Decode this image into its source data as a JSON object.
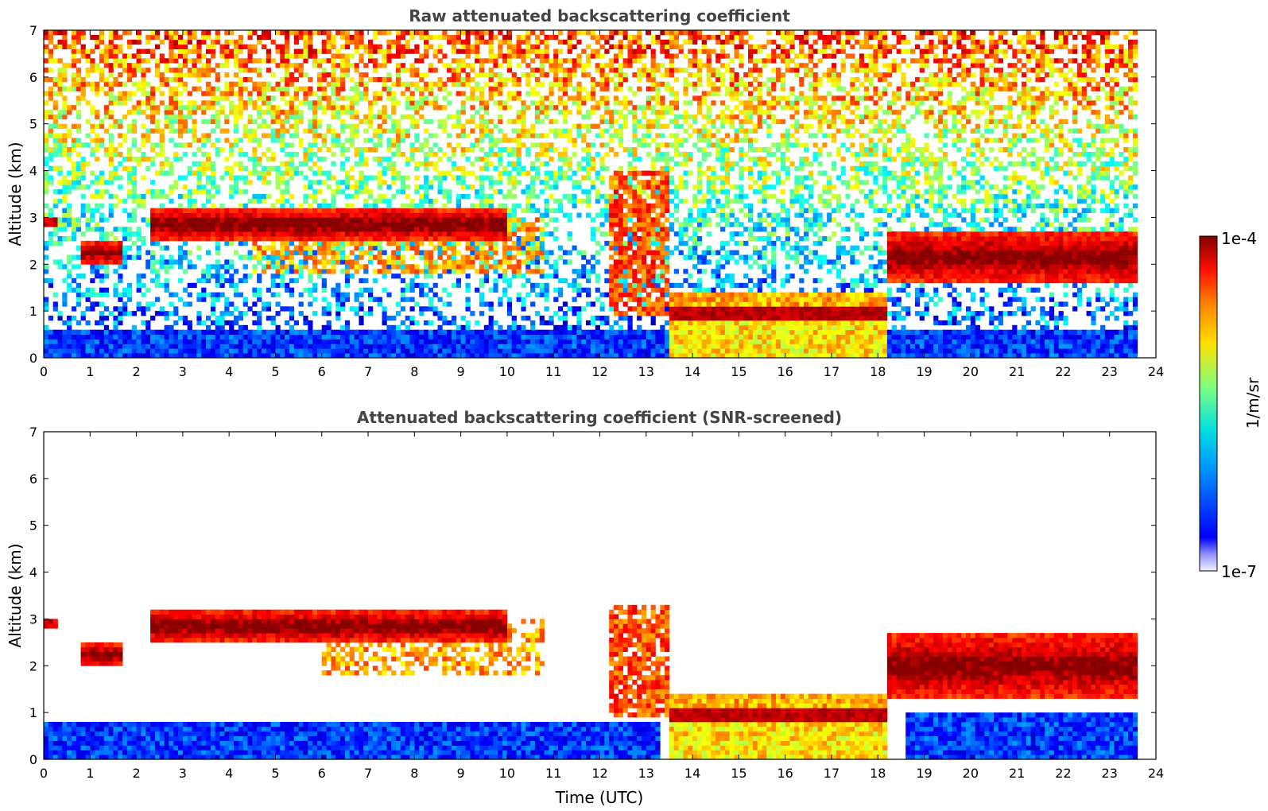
{
  "chart_data": [
    {
      "type": "heatmap",
      "title": "Raw attenuated backscattering coefficient",
      "xlabel": "",
      "ylabel": "Altitude (km)",
      "xlim": [
        0,
        24
      ],
      "ylim": [
        0,
        7
      ],
      "x_ticks": [
        "0",
        "1",
        "2",
        "3",
        "4",
        "5",
        "6",
        "7",
        "8",
        "9",
        "10",
        "11",
        "12",
        "13",
        "14",
        "15",
        "16",
        "17",
        "18",
        "19",
        "20",
        "21",
        "22",
        "23",
        "24"
      ],
      "y_ticks": [
        "0",
        "1",
        "2",
        "3",
        "4",
        "5",
        "6",
        "7"
      ],
      "data_end_hour": 23.6,
      "screened": false,
      "features": [
        {
          "kind": "cloud_layer",
          "x": [
            0.0,
            0.3
          ],
          "y": [
            2.8,
            3.0
          ]
        },
        {
          "kind": "cloud_layer",
          "x": [
            0.8,
            1.7
          ],
          "y": [
            2.0,
            2.5
          ]
        },
        {
          "kind": "cloud_layer",
          "x": [
            2.3,
            10.0
          ],
          "y": [
            2.5,
            3.2
          ]
        },
        {
          "kind": "virga",
          "x": [
            4.5,
            10.8
          ],
          "y": [
            1.8,
            3.0
          ]
        },
        {
          "kind": "falling_precipitation",
          "x": [
            12.2,
            13.5
          ],
          "y": [
            0.9,
            4.0
          ]
        },
        {
          "kind": "boundary_layer_cloud",
          "x": [
            13.5,
            18.2
          ],
          "y": [
            0.0,
            1.4
          ]
        },
        {
          "kind": "cloud_layer",
          "x": [
            18.2,
            23.6
          ],
          "y": [
            1.6,
            2.7
          ]
        },
        {
          "kind": "aerosol_layer",
          "x": [
            0.0,
            23.6
          ],
          "y": [
            0.0,
            0.6
          ]
        }
      ]
    },
    {
      "type": "heatmap",
      "title": "Attenuated backscattering coefficient (SNR-screened)",
      "xlabel": "Time (UTC)",
      "ylabel": "Altitude (km)",
      "xlim": [
        0,
        24
      ],
      "ylim": [
        0,
        7
      ],
      "x_ticks": [
        "0",
        "1",
        "2",
        "3",
        "4",
        "5",
        "6",
        "7",
        "8",
        "9",
        "10",
        "11",
        "12",
        "13",
        "14",
        "15",
        "16",
        "17",
        "18",
        "19",
        "20",
        "21",
        "22",
        "23",
        "24"
      ],
      "y_ticks": [
        "0",
        "1",
        "2",
        "3",
        "4",
        "5",
        "6",
        "7"
      ],
      "data_end_hour": 23.6,
      "screened": true,
      "features": [
        {
          "kind": "cloud_layer",
          "x": [
            0.0,
            0.3
          ],
          "y": [
            2.8,
            3.0
          ]
        },
        {
          "kind": "cloud_layer",
          "x": [
            0.8,
            1.7
          ],
          "y": [
            2.0,
            2.5
          ]
        },
        {
          "kind": "cloud_layer",
          "x": [
            2.3,
            10.0
          ],
          "y": [
            2.5,
            3.2
          ]
        },
        {
          "kind": "virga",
          "x": [
            6.0,
            10.8
          ],
          "y": [
            1.8,
            3.0
          ]
        },
        {
          "kind": "falling_precipitation",
          "x": [
            12.2,
            13.5
          ],
          "y": [
            0.9,
            3.3
          ]
        },
        {
          "kind": "boundary_layer_cloud",
          "x": [
            13.5,
            18.2
          ],
          "y": [
            0.0,
            1.4
          ]
        },
        {
          "kind": "cloud_layer",
          "x": [
            18.2,
            23.6
          ],
          "y": [
            1.3,
            2.7
          ]
        },
        {
          "kind": "aerosol_layer",
          "x": [
            0.0,
            13.3
          ],
          "y": [
            0.0,
            0.8
          ]
        },
        {
          "kind": "aerosol_layer",
          "x": [
            18.6,
            23.6
          ],
          "y": [
            0.0,
            1.0
          ]
        }
      ]
    }
  ],
  "colorbar": {
    "max_label": "1e-4",
    "min_label": "1e-7",
    "unit_label": "1/m/sr",
    "colormap": "jet",
    "range": [
      1e-07,
      0.0001
    ],
    "scale": "log"
  },
  "colors": {
    "title": "#444444",
    "axis": "#000000",
    "cloud_core": "#8b0000"
  }
}
